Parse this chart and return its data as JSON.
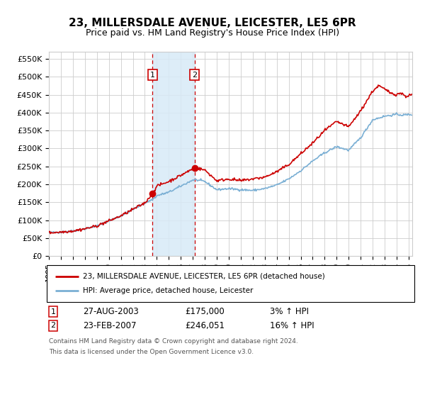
{
  "title": "23, MILLERSDALE AVENUE, LEICESTER, LE5 6PR",
  "subtitle": "Price paid vs. HM Land Registry's House Price Index (HPI)",
  "ylabel_ticks": [
    "£0",
    "£50K",
    "£100K",
    "£150K",
    "£200K",
    "£250K",
    "£300K",
    "£350K",
    "£400K",
    "£450K",
    "£500K",
    "£550K"
  ],
  "ylim": [
    0,
    570000
  ],
  "xlim_start": 1995.0,
  "xlim_end": 2025.3,
  "sale1_date": 2003.65,
  "sale1_price": 175000,
  "sale2_date": 2007.15,
  "sale2_price": 246051,
  "legend_label1": "23, MILLERSDALE AVENUE, LEICESTER, LE5 6PR (detached house)",
  "legend_label2": "HPI: Average price, detached house, Leicester",
  "annotation1_date": "27-AUG-2003",
  "annotation1_price": "£175,000",
  "annotation1_hpi": "3% ↑ HPI",
  "annotation2_date": "23-FEB-2007",
  "annotation2_price": "£246,051",
  "annotation2_hpi": "16% ↑ HPI",
  "footnote1": "Contains HM Land Registry data © Crown copyright and database right 2024.",
  "footnote2": "This data is licensed under the Open Government Licence v3.0.",
  "sale_color": "#cc0000",
  "hpi_color": "#7aafd4",
  "shade_color": "#d8eaf7",
  "marker_color": "#cc0000",
  "vline_color": "#cc0000",
  "background_color": "#ffffff",
  "grid_color": "#cccccc"
}
